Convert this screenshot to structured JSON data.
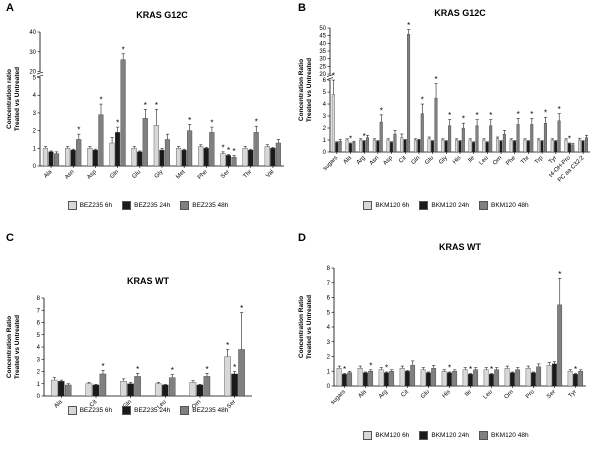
{
  "figure": {
    "panels": [
      {
        "label": "A"
      },
      {
        "label": "B"
      },
      {
        "label": "C"
      },
      {
        "label": "D"
      }
    ]
  },
  "chart_data": [
    {
      "id": "A",
      "type": "bar",
      "title": "KRAS G12C",
      "ylabel": "Concentration ratio\nTreated vs Untreated",
      "legend_position": "bottom",
      "grid": false,
      "categories": [
        "Ala",
        "Asn",
        "Asp",
        "Gln",
        "Glu",
        "Gly",
        "Met",
        "Phe",
        "Ser",
        "Thr",
        "Val"
      ],
      "yticks": [
        0,
        1,
        2,
        3,
        4,
        5,
        20,
        30,
        40
      ],
      "break": {
        "lowMax": 5,
        "highMin": 20,
        "highMax": 40,
        "lowFrac": 0.66
      },
      "series": [
        {
          "name": "BEZ235 6h",
          "color": "#d8d8d8",
          "values": [
            1.0,
            1.0,
            1.0,
            1.3,
            1.0,
            2.3,
            1.0,
            1.1,
            0.7,
            1.0,
            1.1
          ],
          "errors": [
            0.1,
            0.1,
            0.1,
            0.3,
            0.1,
            0.9,
            0.1,
            0.1,
            0.1,
            0.1,
            0.1
          ],
          "stars": [
            0,
            0,
            0,
            0,
            0,
            1,
            0,
            0,
            1,
            0,
            0
          ]
        },
        {
          "name": "BEZ235 24h",
          "color": "#1a1a1a",
          "values": [
            0.8,
            0.9,
            0.9,
            1.9,
            0.8,
            0.9,
            0.9,
            1.0,
            0.6,
            0.9,
            1.0
          ],
          "errors": [
            0.05,
            0.05,
            0.05,
            0.3,
            0.05,
            0.1,
            0.05,
            0.05,
            0.05,
            0.05,
            0.05
          ],
          "stars": [
            0,
            0,
            0,
            1,
            0,
            0,
            0,
            0,
            1,
            0,
            0
          ]
        },
        {
          "name": "BEZ235 48h",
          "color": "#808080",
          "values": [
            0.7,
            1.5,
            2.9,
            26,
            2.7,
            1.5,
            2.0,
            1.9,
            0.5,
            1.9,
            1.3
          ],
          "errors": [
            0.1,
            0.3,
            0.6,
            3.0,
            0.5,
            0.3,
            0.35,
            0.3,
            0.1,
            0.35,
            0.2
          ],
          "stars": [
            0,
            1,
            1,
            1,
            1,
            0,
            1,
            1,
            1,
            1,
            0
          ]
        }
      ]
    },
    {
      "id": "B",
      "type": "bar",
      "title": "KRAS G12C",
      "ylabel": "Concentration Ratio\nTreated vs Untreated",
      "legend_position": "bottom",
      "grid": false,
      "categories": [
        "sugars",
        "Ala",
        "Arg",
        "Asn",
        "Asp",
        "Cit",
        "Gln",
        "Glu",
        "Gly",
        "His",
        "Ile",
        "Leu",
        "Orn",
        "Phe",
        "Thr",
        "Trp",
        "Tyr",
        "t4-OH-Pro",
        "PC aa C32:2"
      ],
      "yticks": [
        0,
        1,
        2,
        3,
        4,
        5,
        6,
        20,
        25,
        30,
        35,
        40,
        45,
        50
      ],
      "break": {
        "lowMax": 6,
        "highMin": 20,
        "highMax": 50,
        "lowFrac": 0.58
      },
      "series": [
        {
          "name": "BKM120 6h",
          "color": "#d8d8d8",
          "values": [
            4.8,
            1.0,
            1.0,
            1.0,
            1.0,
            1.2,
            1.0,
            1.1,
            1.0,
            1.0,
            1.0,
            1.0,
            1.1,
            1.0,
            1.0,
            1.0,
            1.0,
            1.0,
            1.0
          ],
          "errors": [
            1.2,
            0.1,
            0.1,
            0.1,
            0.1,
            0.3,
            0.1,
            0.15,
            0.1,
            0.1,
            0.1,
            0.1,
            0.15,
            0.1,
            0.1,
            0.1,
            0.1,
            0.1,
            0.15
          ],
          "stars": [
            1,
            0,
            0,
            0,
            0,
            0,
            0,
            0,
            0,
            0,
            0,
            0,
            0,
            0,
            0,
            0,
            0,
            0,
            0
          ]
        },
        {
          "name": "BKM120 24h",
          "color": "#1a1a1a",
          "values": [
            0.8,
            0.7,
            0.9,
            0.9,
            0.8,
            1.0,
            1.0,
            0.9,
            0.9,
            0.9,
            0.8,
            0.8,
            0.9,
            0.9,
            0.9,
            0.9,
            0.9,
            0.7,
            0.9
          ],
          "errors": [
            0.05,
            0.05,
            0.05,
            0.05,
            0.05,
            0.05,
            0.05,
            0.05,
            0.05,
            0.05,
            0.05,
            0.05,
            0.05,
            0.05,
            0.05,
            0.05,
            0.05,
            0.05,
            0.05
          ],
          "stars": [
            0,
            1,
            1,
            0,
            0,
            0,
            0,
            0,
            0,
            0,
            0,
            0,
            0,
            0,
            0,
            0,
            0,
            1,
            0
          ]
        },
        {
          "name": "BKM120 48h",
          "color": "#808080",
          "values": [
            0.9,
            0.8,
            1.2,
            2.5,
            1.5,
            46,
            3.2,
            4.5,
            2.2,
            2.0,
            2.2,
            2.2,
            1.5,
            2.3,
            2.3,
            2.4,
            2.6,
            0.6,
            1.2
          ],
          "errors": [
            0.15,
            0.1,
            0.2,
            0.6,
            0.3,
            3.0,
            0.8,
            1.2,
            0.5,
            0.4,
            0.5,
            0.5,
            0.3,
            0.5,
            0.5,
            0.5,
            0.6,
            0.1,
            0.2
          ],
          "stars": [
            0,
            0,
            0,
            1,
            0,
            1,
            1,
            1,
            1,
            1,
            1,
            1,
            0,
            1,
            1,
            1,
            1,
            0,
            0
          ]
        }
      ]
    },
    {
      "id": "C",
      "type": "bar",
      "title": "KRAS WT",
      "ylabel": "Concentration Ratio\nTreated vs Untreated",
      "legend_position": "bottom",
      "grid": false,
      "categories": [
        "Ala",
        "Cit",
        "Gln",
        "Leu",
        "Orn",
        "Ser"
      ],
      "yticks": [
        0,
        1,
        2,
        3,
        4,
        5,
        6,
        7,
        8
      ],
      "ylim": [
        0,
        8
      ],
      "series": [
        {
          "name": "BEZ235 6h",
          "color": "#d8d8d8",
          "values": [
            1.3,
            1.0,
            1.2,
            1.0,
            1.1,
            3.2
          ],
          "errors": [
            0.2,
            0.1,
            0.2,
            0.1,
            0.15,
            0.6
          ],
          "stars": [
            0,
            0,
            0,
            0,
            0,
            1
          ]
        },
        {
          "name": "BEZ235 24h",
          "color": "#1a1a1a",
          "values": [
            1.2,
            0.9,
            1.0,
            0.9,
            0.9,
            1.8
          ],
          "errors": [
            0.1,
            0.05,
            0.1,
            0.05,
            0.05,
            0.2
          ],
          "stars": [
            0,
            0,
            0,
            0,
            0,
            1
          ]
        },
        {
          "name": "BEZ235 48h",
          "color": "#808080",
          "values": [
            0.9,
            1.8,
            1.6,
            1.5,
            1.6,
            3.8
          ],
          "errors": [
            0.1,
            0.3,
            0.25,
            0.25,
            0.25,
            3.0
          ],
          "stars": [
            0,
            1,
            1,
            1,
            1,
            1
          ]
        }
      ]
    },
    {
      "id": "D",
      "type": "bar",
      "title": "KRAS WT",
      "ylabel": "Concentration Ratio\nTreated vs Untreated",
      "legend_position": "bottom",
      "grid": false,
      "categories": [
        "sugars",
        "Ala",
        "Arg",
        "Cit",
        "Glu",
        "His",
        "Ile",
        "Leu",
        "Orn",
        "Pro",
        "Ser",
        "Tyr"
      ],
      "yticks": [
        0,
        1,
        2,
        3,
        4,
        5,
        6,
        7,
        8
      ],
      "ylim": [
        0,
        8
      ],
      "series": [
        {
          "name": "BKM120 6h",
          "color": "#d8d8d8",
          "values": [
            1.2,
            1.2,
            1.1,
            1.2,
            1.1,
            1.0,
            1.1,
            1.1,
            1.2,
            1.2,
            1.4,
            1.0
          ],
          "errors": [
            0.15,
            0.15,
            0.15,
            0.15,
            0.15,
            0.1,
            0.15,
            0.15,
            0.15,
            0.15,
            0.2,
            0.1
          ],
          "stars": [
            0,
            0,
            0,
            0,
            0,
            0,
            0,
            0,
            0,
            0,
            0,
            0
          ]
        },
        {
          "name": "BKM120 24h",
          "color": "#1a1a1a",
          "values": [
            0.8,
            0.9,
            0.9,
            1.0,
            0.9,
            0.9,
            0.8,
            0.8,
            0.9,
            0.9,
            1.5,
            0.8
          ],
          "errors": [
            0.05,
            0.05,
            0.05,
            0.05,
            0.05,
            0.05,
            0.05,
            0.05,
            0.05,
            0.05,
            0.15,
            0.05
          ],
          "stars": [
            1,
            0,
            1,
            0,
            0,
            1,
            1,
            1,
            0,
            0,
            0,
            1
          ]
        },
        {
          "name": "BKM120 48h",
          "color": "#808080",
          "values": [
            0.9,
            1.0,
            1.0,
            1.4,
            1.2,
            1.0,
            1.1,
            1.1,
            1.1,
            1.3,
            5.5,
            1.0
          ],
          "errors": [
            0.1,
            0.1,
            0.1,
            0.3,
            0.2,
            0.1,
            0.15,
            0.15,
            0.15,
            0.2,
            1.8,
            0.1
          ],
          "stars": [
            0,
            1,
            0,
            0,
            0,
            0,
            0,
            0,
            0,
            0,
            1,
            0
          ]
        }
      ]
    }
  ]
}
